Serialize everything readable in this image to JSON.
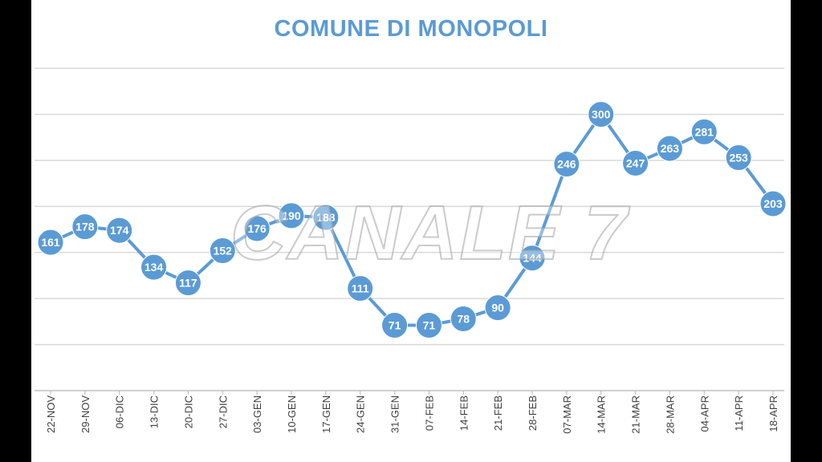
{
  "watermark": "CANALE 7",
  "colors": {
    "series": "#5b9bd5",
    "title": "#5b9bd5",
    "grid": "#d9d9d9",
    "axis": "#bfbfbf",
    "label": "#ffffff",
    "tick": "#404040"
  },
  "chart_data": {
    "type": "line",
    "title": "COMUNE DI MONOPOLI",
    "xlabel": "",
    "ylabel": "",
    "categories": [
      "22-NOV",
      "29-NOV",
      "06-DIC",
      "13-DIC",
      "20-DIC",
      "27-DIC",
      "03-GEN",
      "10-GEN",
      "17-GEN",
      "24-GEN",
      "31-GEN",
      "07-FEB",
      "14-FEB",
      "21-FEB",
      "28-FEB",
      "07-MAR",
      "14-MAR",
      "21-MAR",
      "28-MAR",
      "04-APR",
      "11-APR",
      "18-APR"
    ],
    "series": [
      {
        "values": [
          161,
          178,
          174,
          134,
          117,
          152,
          176,
          190,
          188,
          111,
          71,
          71,
          78,
          90,
          144,
          246,
          300,
          247,
          263,
          281,
          253,
          203
        ]
      }
    ],
    "ylim": [
      0,
      350
    ],
    "yticks_step": 50,
    "grid": true,
    "legend": "none",
    "data_labels": true
  }
}
